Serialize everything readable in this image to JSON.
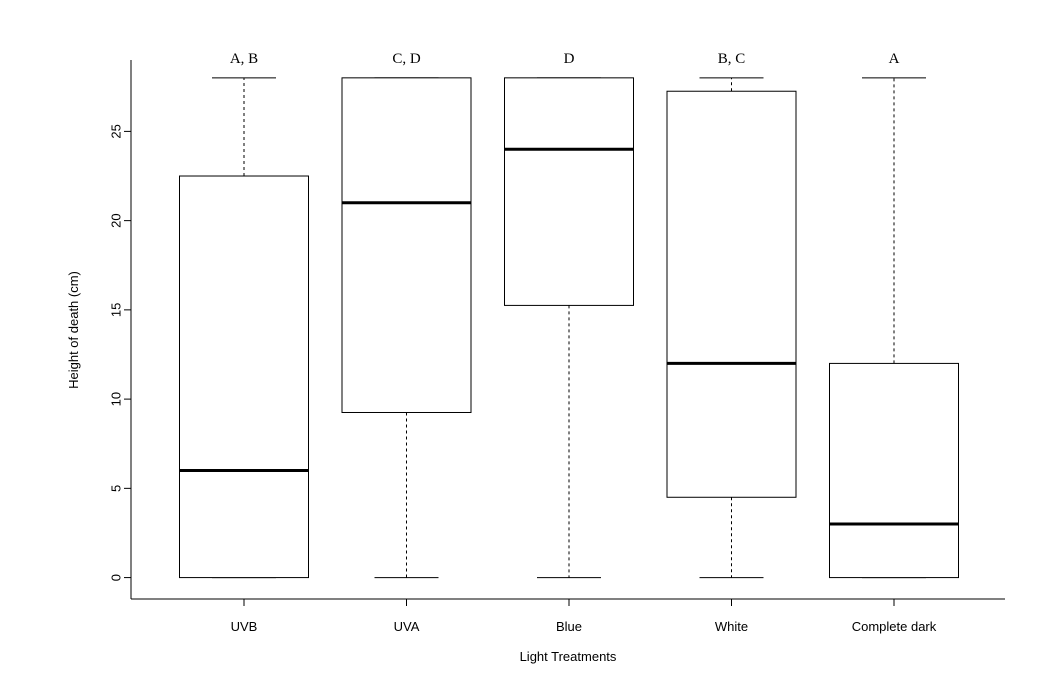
{
  "chart_data": {
    "type": "boxplot",
    "title": "",
    "xlabel": "Light Treatments",
    "ylabel": "Height of death (cm)",
    "ylim": [
      -1.2,
      29.0
    ],
    "yticks": [
      "0",
      "5",
      "10",
      "15",
      "20",
      "25"
    ],
    "categories": [
      "UVB",
      "UVA",
      "Blue",
      "White",
      "Complete dark"
    ],
    "boxes": [
      {
        "category": "UVB",
        "whisker_low": 0,
        "q1": 0,
        "median": 6,
        "q3": 22.5,
        "whisker_high": 28,
        "group_label": "A, B"
      },
      {
        "category": "UVA",
        "whisker_low": 0,
        "q1": 9.25,
        "median": 21,
        "q3": 28,
        "whisker_high": 28,
        "group_label": "C, D"
      },
      {
        "category": "Blue",
        "whisker_low": 0,
        "q1": 15.25,
        "median": 24,
        "q3": 28,
        "whisker_high": 28,
        "group_label": "D"
      },
      {
        "category": "White",
        "whisker_low": 0,
        "q1": 4.5,
        "median": 12,
        "q3": 27.25,
        "whisker_high": 28,
        "group_label": "B, C"
      },
      {
        "category": "Complete dark",
        "whisker_low": 0,
        "q1": 0,
        "median": 3,
        "q3": 12,
        "whisker_high": 28,
        "group_label": "A"
      }
    ],
    "grid": false,
    "legend": "none"
  }
}
